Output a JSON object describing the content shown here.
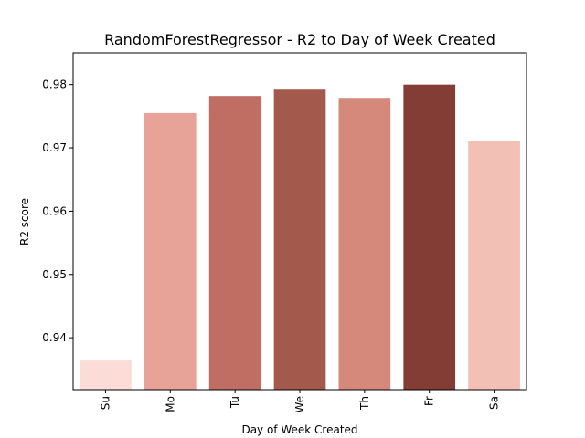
{
  "chart_data": {
    "type": "bar",
    "title": "RandomForestRegressor - R2 to Day of Week Created",
    "xlabel": "Day of Week Created",
    "ylabel": "R2 score",
    "categories": [
      "Su",
      "Mo",
      "Tu",
      "We",
      "Th",
      "Fr",
      "Sa"
    ],
    "values": [
      0.9364,
      0.9755,
      0.9782,
      0.9792,
      0.9779,
      0.98,
      0.9711
    ],
    "colors": [
      "#fcdcd6",
      "#e7a398",
      "#c06e63",
      "#a3594b",
      "#d4897b",
      "#843d34",
      "#f3c0b6"
    ],
    "ylim": [
      0.9318,
      0.985
    ],
    "yticks": [
      0.94,
      0.95,
      0.96,
      0.97,
      0.98
    ],
    "ytick_labels": [
      "0.94",
      "0.95",
      "0.96",
      "0.97",
      "0.98"
    ],
    "grid": false,
    "legend": "none"
  }
}
